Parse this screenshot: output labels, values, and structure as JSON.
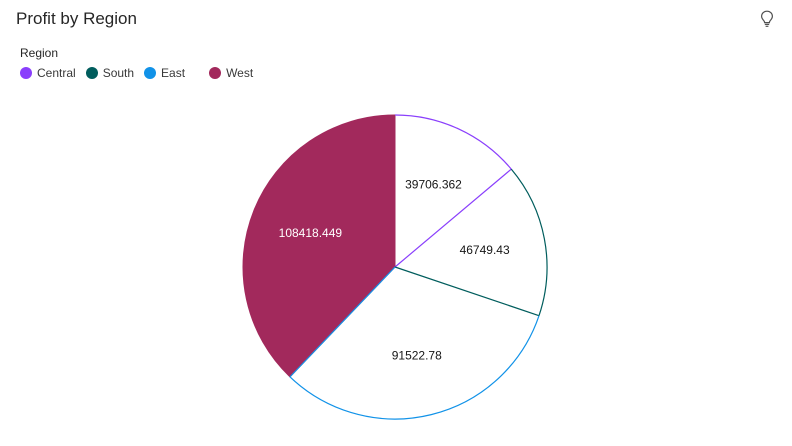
{
  "header": {
    "title": "Profit by Region",
    "insight_icon": "lightbulb-icon"
  },
  "legend": {
    "title": "Region"
  },
  "chart_data": {
    "type": "pie",
    "title": "Profit by Region",
    "legend_title": "Region",
    "legend_position": "top-left",
    "categories": [
      "Central",
      "South",
      "East",
      "West"
    ],
    "values": [
      39706.362,
      46749.43,
      91522.78,
      108418.449
    ],
    "labels": [
      "39706.362",
      "46749.43",
      "91522.78",
      "108418.449"
    ],
    "colors": [
      "#8a3ffc",
      "#005d5d",
      "#1192e8",
      "#a2295c"
    ],
    "filled": [
      false,
      false,
      false,
      true
    ]
  }
}
